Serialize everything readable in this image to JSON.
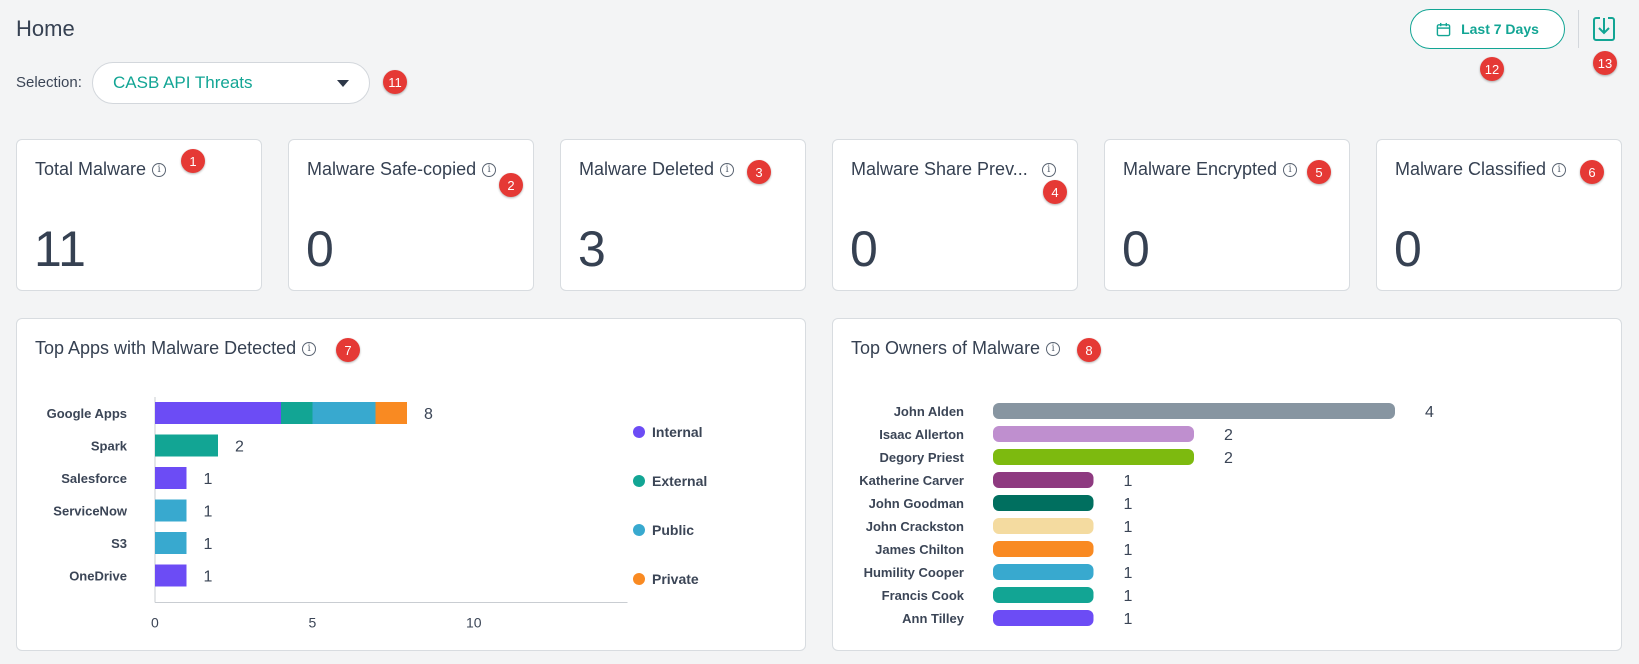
{
  "header": {
    "title": "Home",
    "selection_label": "Selection:",
    "selection_value": "CASB API Threats",
    "date_range_label": "Last 7 Days"
  },
  "badges": {
    "selection": "11",
    "date_range": "12",
    "download": "13",
    "total_malware": "1",
    "safe_copied": "2",
    "deleted": "3",
    "share_prevented": "4",
    "encrypted": "5",
    "classified": "6",
    "top_apps": "7",
    "top_owners": "8"
  },
  "kpis": [
    {
      "title": "Total Malware",
      "value": "11"
    },
    {
      "title": "Malware Safe-copied",
      "value": "0"
    },
    {
      "title": "Malware Deleted",
      "value": "3"
    },
    {
      "title": "Malware Share Prev...",
      "value": "0"
    },
    {
      "title": "Malware Encrypted",
      "value": "0"
    },
    {
      "title": "Malware Classified",
      "value": "0"
    }
  ],
  "icons": {
    "info": "info-icon",
    "calendar": "calendar-icon",
    "download": "download-icon",
    "caret": "chevron-down-icon"
  },
  "colors": {
    "accent": "#12a594",
    "badge": "#e53935",
    "internal": "#6c4cf5",
    "external": "#12a594",
    "public": "#38a9cf",
    "private": "#f98a22"
  },
  "chart_data": [
    {
      "type": "bar",
      "orientation": "horizontal",
      "stacked": true,
      "title": "Top Apps with Malware Detected",
      "categories": [
        "Google Apps",
        "Spark",
        "Salesforce",
        "ServiceNow",
        "S3",
        "OneDrive"
      ],
      "totals": [
        8,
        2,
        1,
        1,
        1,
        1
      ],
      "series": [
        {
          "name": "Internal",
          "color": "#6c4cf5",
          "values": [
            4,
            0,
            1,
            0,
            0,
            1
          ]
        },
        {
          "name": "External",
          "color": "#12a594",
          "values": [
            1,
            2,
            0,
            0,
            0,
            0
          ]
        },
        {
          "name": "Public",
          "color": "#38a9cf",
          "values": [
            2,
            0,
            0,
            1,
            1,
            0
          ]
        },
        {
          "name": "Private",
          "color": "#f98a22",
          "values": [
            1,
            0,
            0,
            0,
            0,
            0
          ]
        }
      ],
      "xticks": [
        0,
        5,
        10
      ],
      "xlim": [
        0,
        15
      ],
      "legend_position": "right"
    },
    {
      "type": "bar",
      "orientation": "horizontal",
      "title": "Top Owners of Malware",
      "categories": [
        "John Alden",
        "Isaac Allerton",
        "Degory Priest",
        "Katherine Carver",
        "John Goodman",
        "John Crackston",
        "James Chilton",
        "Humility Cooper",
        "Francis Cook",
        "Ann Tilley"
      ],
      "values": [
        4,
        2,
        2,
        1,
        1,
        1,
        1,
        1,
        1,
        1
      ],
      "colors": [
        "#8795a1",
        "#bf8fcf",
        "#7dba0f",
        "#8e3a80",
        "#006f5f",
        "#f4dba0",
        "#f98a22",
        "#38a9cf",
        "#12a594",
        "#6c4cf5"
      ]
    }
  ]
}
